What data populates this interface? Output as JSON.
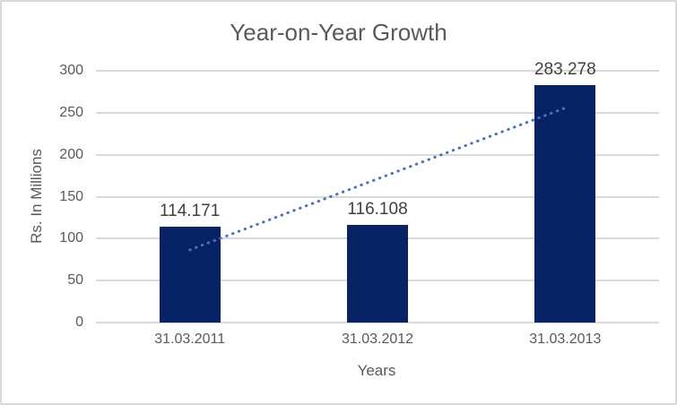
{
  "chart_data": {
    "type": "bar",
    "title": "Year-on-Year Growth",
    "xlabel": "Years",
    "ylabel": "Rs. In Millions",
    "categories": [
      "31.03.2011",
      "31.03.2012",
      "31.03.2013"
    ],
    "values": [
      114.171,
      116.108,
      283.278
    ],
    "data_labels": [
      "114.171",
      "116.108",
      "283.278"
    ],
    "ylim": [
      0,
      300
    ],
    "yticks": [
      0,
      50,
      100,
      150,
      200,
      250,
      300
    ],
    "grid": true,
    "legend": "none",
    "trendline": {
      "type": "linear",
      "style": "dotted"
    },
    "colors": {
      "bar": "#072366",
      "trendline": "#4472c4",
      "gridline": "#d9d9d9",
      "axis_text": "#595959",
      "data_label_text": "#404040",
      "title_text": "#595959",
      "border": "#d9d9d9",
      "background": "#ffffff"
    }
  }
}
